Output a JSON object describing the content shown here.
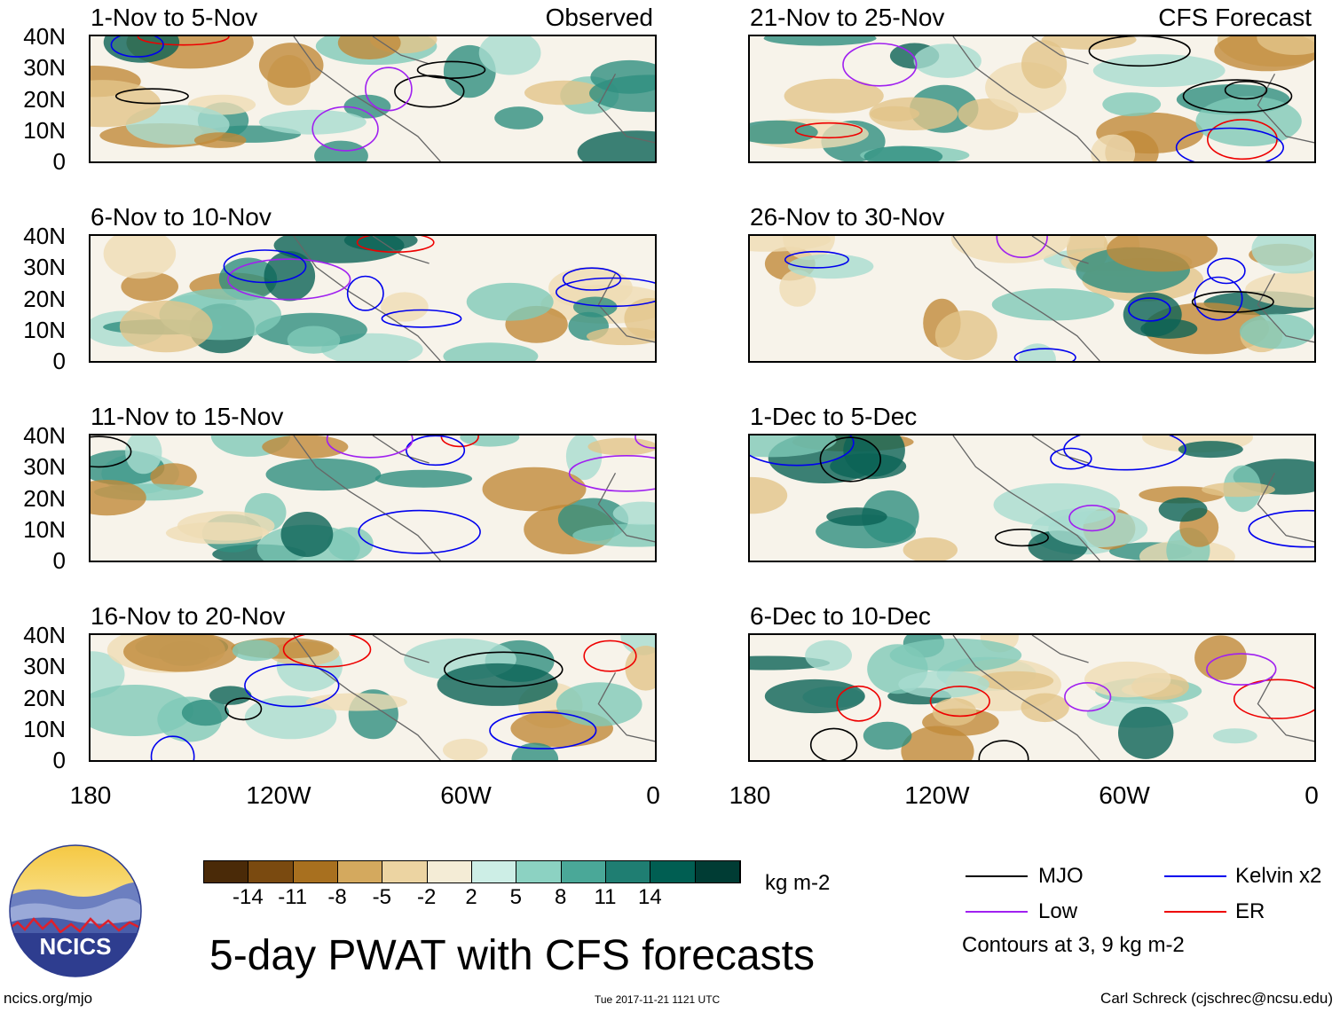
{
  "observed_label": "Observed",
  "forecast_label": "CFS Forecast",
  "panels_left": [
    {
      "title": "1-Nov to 5-Nov"
    },
    {
      "title": "6-Nov to 10-Nov"
    },
    {
      "title": "11-Nov to 15-Nov"
    },
    {
      "title": "16-Nov to 20-Nov"
    }
  ],
  "panels_right": [
    {
      "title": "21-Nov to 25-Nov"
    },
    {
      "title": "26-Nov to 30-Nov"
    },
    {
      "title": "1-Dec to 5-Dec"
    },
    {
      "title": "6-Dec to 10-Dec"
    }
  ],
  "y_ticks": [
    "40N",
    "30N",
    "20N",
    "10N",
    "0"
  ],
  "x_ticks": [
    "180",
    "120W",
    "60W",
    "0"
  ],
  "colorbar": {
    "labels": [
      "-14",
      "-11",
      "-8",
      "-5",
      "-2",
      "2",
      "5",
      "8",
      "11",
      "14"
    ],
    "colors": [
      "#4a2a08",
      "#7a4a10",
      "#a8701f",
      "#d4a95e",
      "#ecd4a2",
      "#f4ecd6",
      "#ffffff",
      "#cdeee6",
      "#8cd2c2",
      "#4aa898",
      "#1f7e72",
      "#005e52",
      "#003c34"
    ],
    "unit": "kg m-2"
  },
  "legend": {
    "items": [
      {
        "label": "MJO",
        "color": "#000000"
      },
      {
        "label": "Kelvin x2",
        "color": "#0000ee"
      },
      {
        "label": "Low",
        "color": "#a020f0"
      },
      {
        "label": "ER",
        "color": "#ee0000"
      }
    ],
    "contours_note": "Contours at 3, 9 kg m-2"
  },
  "logo_text": "NCICS",
  "main_title": "5-day PWAT with CFS forecasts",
  "footer": {
    "website": "ncics.org/mjo",
    "timestamp": "Tue 2017-11-21 1121 UTC",
    "credit": "Carl Schreck (cjschrec@ncsu.edu)"
  }
}
